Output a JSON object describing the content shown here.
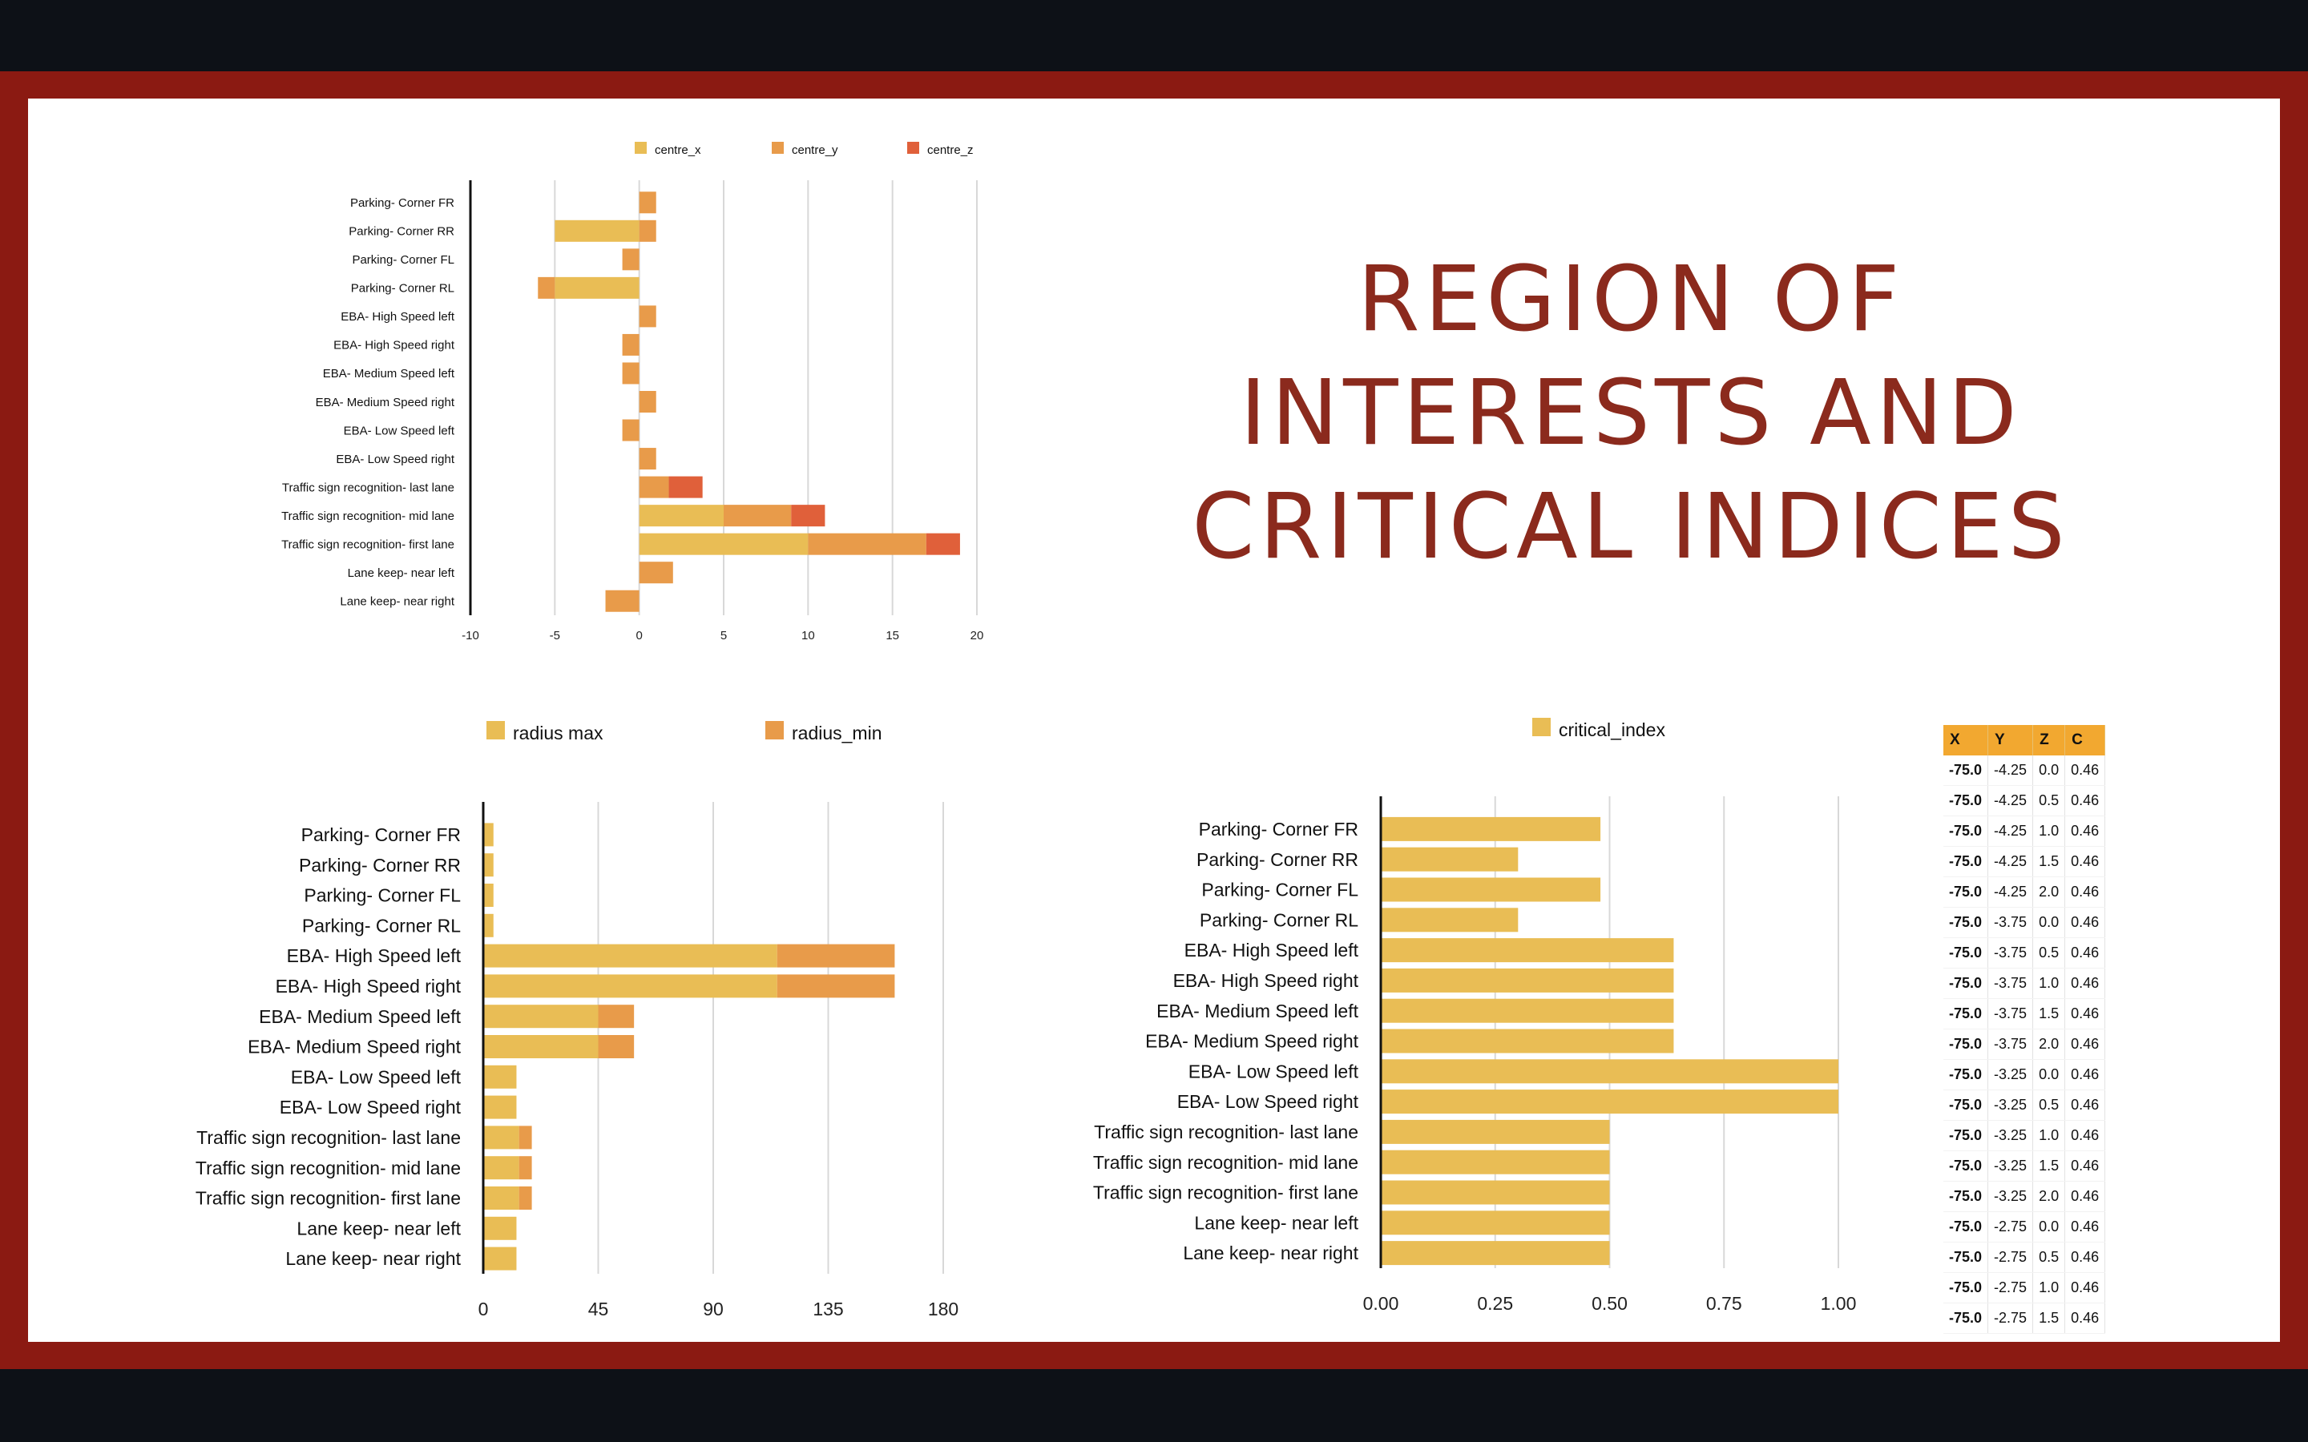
{
  "title": {
    "line1": "REGION OF",
    "line2": "INTERESTS AND",
    "line3": "CRITICAL INDICES"
  },
  "colors": {
    "yellow": "#e9bd55",
    "orange": "#e89b4a",
    "red": "#e0603a",
    "frame": "#8b1a12",
    "title": "#8b2a1d",
    "table_header": "#f2a830"
  },
  "chart_data": [
    {
      "type": "bar",
      "orientation": "horizontal",
      "stacked": true,
      "title": "",
      "categories": [
        "Parking- Corner FR",
        "Parking- Corner RR",
        "Parking- Corner FL",
        "Parking- Corner RL",
        "EBA- High Speed left",
        "EBA- High Speed right",
        "EBA- Medium Speed left",
        "EBA- Medium Speed right",
        "EBA- Low Speed left",
        "EBA- Low Speed right",
        "Traffic sign recognition- last lane",
        "Traffic sign recognition- mid lane",
        "Traffic sign recognition- first lane",
        "Lane keep- near left",
        "Lane keep- near right"
      ],
      "series": [
        {
          "name": "centre_x",
          "values": [
            0,
            -5,
            0,
            -5,
            0,
            0,
            0,
            0,
            0,
            0,
            0,
            5,
            10,
            0,
            0
          ]
        },
        {
          "name": "centre_y",
          "values": [
            1,
            1,
            -1,
            -1,
            1,
            -1,
            -1,
            1,
            -1,
            1,
            1.75,
            4,
            7,
            2,
            -2
          ]
        },
        {
          "name": "centre_z",
          "values": [
            0,
            0,
            0,
            0,
            0,
            0,
            0,
            0,
            0,
            0,
            2,
            2,
            2,
            0,
            0
          ]
        }
      ],
      "xlim": [
        -10,
        20
      ],
      "xticks": [
        "-10",
        "-5",
        "0",
        "5",
        "10",
        "15",
        "20"
      ],
      "grid": true,
      "legend": "top"
    },
    {
      "type": "bar",
      "orientation": "horizontal",
      "stacked": true,
      "title": "",
      "categories": [
        "Parking- Corner FR",
        "Parking- Corner RR",
        "Parking- Corner FL",
        "Parking- Corner RL",
        "EBA- High Speed left",
        "EBA- High Speed right",
        "EBA- Medium Speed left",
        "EBA- Medium Speed right",
        "EBA- Low Speed left",
        "EBA- Low Speed right",
        "Traffic sign recognition- last lane",
        "Traffic sign recognition- mid lane",
        "Traffic sign recognition- first lane",
        "Lane keep- near left",
        "Lane keep- near right"
      ],
      "series": [
        {
          "name": "radius max",
          "values": [
            4,
            4,
            4,
            4,
            115,
            115,
            45,
            45,
            13,
            13,
            14,
            14,
            14,
            13,
            13
          ]
        },
        {
          "name": "radius_min",
          "values": [
            0,
            0,
            0,
            0,
            46,
            46,
            14,
            14,
            0,
            0,
            5,
            5,
            5,
            0,
            0
          ]
        }
      ],
      "xlim": [
        0,
        180
      ],
      "xticks": [
        "0",
        "45",
        "90",
        "135",
        "180"
      ],
      "grid": true,
      "legend": "top"
    },
    {
      "type": "bar",
      "orientation": "horizontal",
      "title": "",
      "categories": [
        "Parking- Corner FR",
        "Parking- Corner RR",
        "Parking- Corner FL",
        "Parking- Corner RL",
        "EBA- High Speed left",
        "EBA- High Speed right",
        "EBA- Medium Speed left",
        "EBA- Medium Speed right",
        "EBA- Low Speed left",
        "EBA- Low Speed right",
        "Traffic sign recognition- last lane",
        "Traffic sign recognition- mid lane",
        "Traffic sign recognition- first lane",
        "Lane keep- near left",
        "Lane keep- near right"
      ],
      "series": [
        {
          "name": "critical_index",
          "values": [
            0.48,
            0.3,
            0.48,
            0.3,
            0.64,
            0.64,
            0.64,
            0.64,
            1.0,
            1.0,
            0.5,
            0.5,
            0.5,
            0.5,
            0.5
          ]
        }
      ],
      "xlim": [
        0,
        1.0
      ],
      "xticks": [
        "0.00",
        "0.25",
        "0.50",
        "0.75",
        "1.00"
      ],
      "grid": true,
      "legend": "top"
    },
    {
      "type": "table",
      "columns": [
        "X",
        "Y",
        "Z",
        "C"
      ],
      "rows": [
        [
          "-75.0",
          "-4.25",
          "0.0",
          "0.46"
        ],
        [
          "-75.0",
          "-4.25",
          "0.5",
          "0.46"
        ],
        [
          "-75.0",
          "-4.25",
          "1.0",
          "0.46"
        ],
        [
          "-75.0",
          "-4.25",
          "1.5",
          "0.46"
        ],
        [
          "-75.0",
          "-4.25",
          "2.0",
          "0.46"
        ],
        [
          "-75.0",
          "-3.75",
          "0.0",
          "0.46"
        ],
        [
          "-75.0",
          "-3.75",
          "0.5",
          "0.46"
        ],
        [
          "-75.0",
          "-3.75",
          "1.0",
          "0.46"
        ],
        [
          "-75.0",
          "-3.75",
          "1.5",
          "0.46"
        ],
        [
          "-75.0",
          "-3.75",
          "2.0",
          "0.46"
        ],
        [
          "-75.0",
          "-3.25",
          "0.0",
          "0.46"
        ],
        [
          "-75.0",
          "-3.25",
          "0.5",
          "0.46"
        ],
        [
          "-75.0",
          "-3.25",
          "1.0",
          "0.46"
        ],
        [
          "-75.0",
          "-3.25",
          "1.5",
          "0.46"
        ],
        [
          "-75.0",
          "-3.25",
          "2.0",
          "0.46"
        ],
        [
          "-75.0",
          "-2.75",
          "0.0",
          "0.46"
        ],
        [
          "-75.0",
          "-2.75",
          "0.5",
          "0.46"
        ],
        [
          "-75.0",
          "-2.75",
          "1.0",
          "0.46"
        ],
        [
          "-75.0",
          "-2.75",
          "1.5",
          "0.46"
        ]
      ]
    }
  ]
}
